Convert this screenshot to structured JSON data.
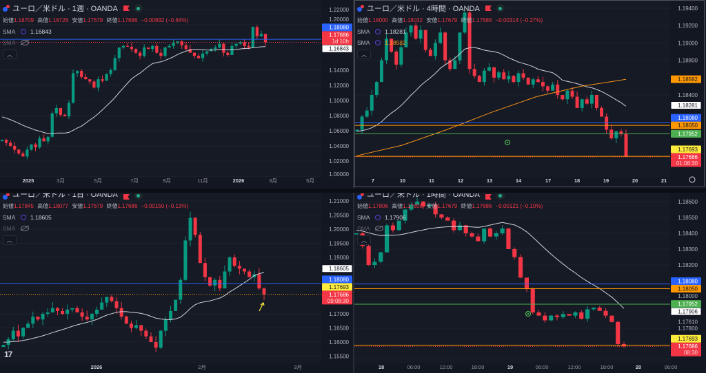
{
  "panels": [
    {
      "title": "ユーロ／米ドル · 1週 · OANDA",
      "ohlc": {
        "open_label": "始値",
        "open": "1.18709",
        "high_label": "高値",
        "high": "1.18728",
        "low_label": "安値",
        "low": "1.17679",
        "close_label": "終値",
        "close": "1.17686",
        "change": "−0.00992 (−0.84%)"
      },
      "sma": [
        {
          "label": "SMA",
          "value": "1.16843"
        },
        {
          "label": "SMA",
          "value": ""
        }
      ]
    },
    {
      "title": "ユーロ／米ドル · 4時間 · OANDA",
      "ohlc": {
        "open_label": "始値",
        "open": "1.18000",
        "high_label": "高値",
        "high": "1.18032",
        "low_label": "安値",
        "low": "1.17679",
        "close_label": "終値",
        "close": "1.17686",
        "change": "−0.00314 (−0.27%)"
      },
      "sma": [
        {
          "label": "SMA",
          "value": "1.18281"
        },
        {
          "label": "SMA",
          "value": "1.18582"
        }
      ]
    },
    {
      "title": "ユーロ／米ドル · 1日 · OANDA",
      "ohlc": {
        "open_label": "始値",
        "open": "1.17845",
        "high_label": "高値",
        "high": "1.18077",
        "low_label": "安値",
        "low": "1.17679",
        "close_label": "終値",
        "close": "1.17686",
        "change": "−0.00150 (−0.13%)"
      },
      "sma": [
        {
          "label": "SMA",
          "value": "1.18605"
        },
        {
          "label": "SMA",
          "value": ""
        }
      ]
    },
    {
      "title": "ユーロ／米ドル · 1時間 · OANDA",
      "ohlc": {
        "open_label": "始値",
        "open": "1.17806",
        "high_label": "高値",
        "high": "1.17808",
        "low_label": "安値",
        "low": "1.17679",
        "close_label": "終値",
        "close": "1.17686",
        "change": "−0.00121 (−0.10%)"
      },
      "sma": [
        {
          "label": "SMA",
          "value": "1.17906"
        },
        {
          "label": "SMA",
          "value": ""
        }
      ]
    }
  ],
  "colors": {
    "up": "#089981",
    "down": "#f23645",
    "sma": "#d1d4dc",
    "sma_slow": "#f7931a",
    "blue": "#2962ff",
    "orange": "#ff9800",
    "green": "#4caf50",
    "yellow": "#ffeb3b",
    "red": "#f23645",
    "white": "#ffffff"
  },
  "chart_data": [
    {
      "type": "candlestick",
      "timeframe": "1週",
      "closes": [
        1.048,
        1.044,
        1.04,
        1.035,
        1.03,
        1.026,
        1.035,
        1.042,
        1.038,
        1.05,
        1.046,
        1.052,
        1.083,
        1.09,
        1.081,
        1.079,
        1.097,
        1.136,
        1.139,
        1.131,
        1.128,
        1.125,
        1.117,
        1.128,
        1.126,
        1.135,
        1.14,
        1.156,
        1.17,
        1.172,
        1.171,
        1.168,
        1.163,
        1.159,
        1.17,
        1.168,
        1.172,
        1.163,
        1.159,
        1.17,
        1.172,
        1.176,
        1.178,
        1.173,
        1.168,
        1.163,
        1.159,
        1.156,
        1.162,
        1.165,
        1.168,
        1.17,
        1.175,
        1.163,
        1.16,
        1.172,
        1.175,
        1.177,
        1.172,
        1.17,
        1.197,
        1.185,
        1.188,
        1.17686
      ],
      "sma_seed": 1.08,
      "sma_period": 20,
      "price_ticks": [
        "1.22000",
        "1.20000",
        "1.14000",
        "1.12000",
        "1.10000",
        "1.08000",
        "1.06000",
        "1.04000",
        "1.02000",
        "1.00000"
      ],
      "time_labels": [
        "2025",
        "3月",
        "5月",
        "7月",
        "9月",
        "11月",
        "2026",
        "3月",
        "5月"
      ],
      "lines": [
        {
          "price": 1.1808,
          "color": "blue",
          "style": "solid"
        },
        {
          "price": 1.17686,
          "color": "red",
          "style": "dotted"
        }
      ],
      "badges": [
        {
          "price": 1.1808,
          "label": "1.18080",
          "color": "blue"
        },
        {
          "price": 1.17686,
          "label": "1.17686",
          "sub": "1d 10h",
          "color": "red"
        },
        {
          "price": 1.16843,
          "label": "1.16843",
          "color": "white"
        }
      ]
    },
    {
      "type": "candlestick",
      "timeframe": "4時間",
      "closes": [
        1.18,
        1.1815,
        1.1822,
        1.184,
        1.1855,
        1.188,
        1.1905,
        1.189,
        1.1875,
        1.1895,
        1.1912,
        1.192,
        1.1905,
        1.1915,
        1.1892,
        1.1885,
        1.19,
        1.1912,
        1.188,
        1.187,
        1.188,
        1.1912,
        1.1935,
        1.187,
        1.1862,
        1.1855,
        1.1868,
        1.1872,
        1.186,
        1.1866,
        1.1858,
        1.1862,
        1.1855,
        1.1865,
        1.186,
        1.1852,
        1.1858,
        1.1855,
        1.185,
        1.1845,
        1.1852,
        1.184,
        1.1835,
        1.1845,
        1.1838,
        1.1825,
        1.1835,
        1.183,
        1.184,
        1.1825,
        1.1815,
        1.18,
        1.179,
        1.1798,
        1.1795,
        1.17686
      ],
      "sma_seed": 1.1798,
      "sma_period": 20,
      "sma_slow": [
        1.177,
        1.1782,
        1.18,
        1.182,
        1.1838,
        1.185,
        1.1858
      ],
      "price_ticks": [
        "1.19400",
        "1.19200",
        "1.19000",
        "1.18800",
        "1.18400"
      ],
      "time_labels": [
        "7",
        "10",
        "11",
        "12",
        "13",
        "14",
        "17",
        "18",
        "19",
        "20",
        "21"
      ],
      "lines": [
        {
          "price": 1.1808,
          "color": "blue",
          "style": "solid"
        },
        {
          "price": 1.1805,
          "color": "orange",
          "style": "solid"
        },
        {
          "price": 1.17952,
          "color": "green",
          "style": "solid"
        },
        {
          "price": 1.17693,
          "color": "orange",
          "style": "solid"
        },
        {
          "price": 1.17686,
          "color": "red",
          "style": "dotted"
        }
      ],
      "badges": [
        {
          "price": 1.18582,
          "label": "1.18582",
          "color": "orange"
        },
        {
          "price": 1.18281,
          "label": "1.18281",
          "color": "white"
        },
        {
          "price": 1.1808,
          "label": "1.18080",
          "color": "blue"
        },
        {
          "price": 1.1805,
          "label": "1.18050",
          "color": "orange"
        },
        {
          "price": 1.17952,
          "label": "1.17952",
          "color": "green"
        },
        {
          "price": 1.17693,
          "label": "1.17693",
          "color": "yellow"
        },
        {
          "price": 1.17686,
          "label": "1.17686",
          "sub": "01:08:30",
          "color": "red"
        }
      ]
    },
    {
      "type": "candlestick",
      "timeframe": "1日",
      "closes": [
        1.159,
        1.161,
        1.164,
        1.162,
        1.165,
        1.1665,
        1.169,
        1.168,
        1.17,
        1.1705,
        1.172,
        1.171,
        1.17,
        1.1715,
        1.172,
        1.1705,
        1.169,
        1.168,
        1.17,
        1.1715,
        1.174,
        1.176,
        1.1745,
        1.172,
        1.169,
        1.1665,
        1.165,
        1.166,
        1.164,
        1.162,
        1.16,
        1.158,
        1.164,
        1.168,
        1.171,
        1.175,
        1.182,
        1.196,
        1.204,
        1.198,
        1.188,
        1.183,
        1.18,
        1.182,
        1.179,
        1.185,
        1.19,
        1.187,
        1.186,
        1.185,
        1.183,
        1.184,
        1.179,
        1.17686
      ],
      "sma_seed": 1.16,
      "sma_period": 20,
      "price_ticks": [
        "1.21000",
        "1.20500",
        "1.20000",
        "1.19500",
        "1.19000",
        "1.17000",
        "1.16500",
        "1.16000",
        "1.15500"
      ],
      "time_labels": [
        "2026",
        "2月",
        "3月"
      ],
      "lines": [
        {
          "price": 1.1808,
          "color": "blue",
          "style": "solid"
        },
        {
          "price": 1.17693,
          "color": "orange",
          "style": "dotted"
        }
      ],
      "badges": [
        {
          "price": 1.18605,
          "label": "1.18605",
          "color": "white"
        },
        {
          "price": 1.1808,
          "label": "1.18080",
          "color": "blue"
        },
        {
          "price": 1.17693,
          "label": "1.17693",
          "color": "yellow"
        },
        {
          "price": 1.17686,
          "label": "1.17686",
          "sub": "09:08:30",
          "color": "red"
        }
      ]
    },
    {
      "type": "candlestick",
      "timeframe": "1時間",
      "closes": [
        1.184,
        1.1832,
        1.182,
        1.1822,
        1.1828,
        1.1845,
        1.1842,
        1.1848,
        1.1855,
        1.1858,
        1.186,
        1.1857,
        1.1858,
        1.1852,
        1.185,
        1.1848,
        1.1842,
        1.1845,
        1.184,
        1.1838,
        1.1835,
        1.1843,
        1.1838,
        1.184,
        1.1843,
        1.183,
        1.1825,
        1.1812,
        1.1805,
        1.179,
        1.1788,
        1.1785,
        1.1788,
        1.1787,
        1.1789,
        1.1788,
        1.179,
        1.1786,
        1.1792,
        1.1793,
        1.1791,
        1.1788,
        1.1784,
        1.177,
        1.17686
      ],
      "sma_seed": 1.1842,
      "sma_period": 20,
      "price_ticks": [
        "1.18600",
        "1.18500",
        "1.18400",
        "1.18300",
        "1.18200",
        "1.18000",
        "1.17800",
        "1.17610"
      ],
      "time_labels": [
        "18",
        "06:00",
        "12:00",
        "18:00",
        "19",
        "06:00",
        "12:00",
        "18:00",
        "20",
        "06:00"
      ],
      "lines": [
        {
          "price": 1.1808,
          "color": "blue",
          "style": "solid"
        },
        {
          "price": 1.1805,
          "color": "orange",
          "style": "solid"
        },
        {
          "price": 1.17952,
          "color": "green",
          "style": "solid"
        },
        {
          "price": 1.17693,
          "color": "orange",
          "style": "solid"
        },
        {
          "price": 1.17686,
          "color": "red",
          "style": "dotted"
        }
      ],
      "badges": [
        {
          "price": 1.1808,
          "label": "1.18080",
          "color": "blue"
        },
        {
          "price": 1.1805,
          "label": "1.18050",
          "color": "orange"
        },
        {
          "price": 1.17952,
          "label": "1.17952",
          "color": "green"
        },
        {
          "price": 1.17906,
          "label": "1.17906",
          "color": "white"
        },
        {
          "price": 1.17693,
          "label": "1.17693",
          "color": "yellow"
        },
        {
          "price": 1.17686,
          "label": "1.17686",
          "sub": "08:30",
          "color": "red"
        }
      ]
    }
  ]
}
